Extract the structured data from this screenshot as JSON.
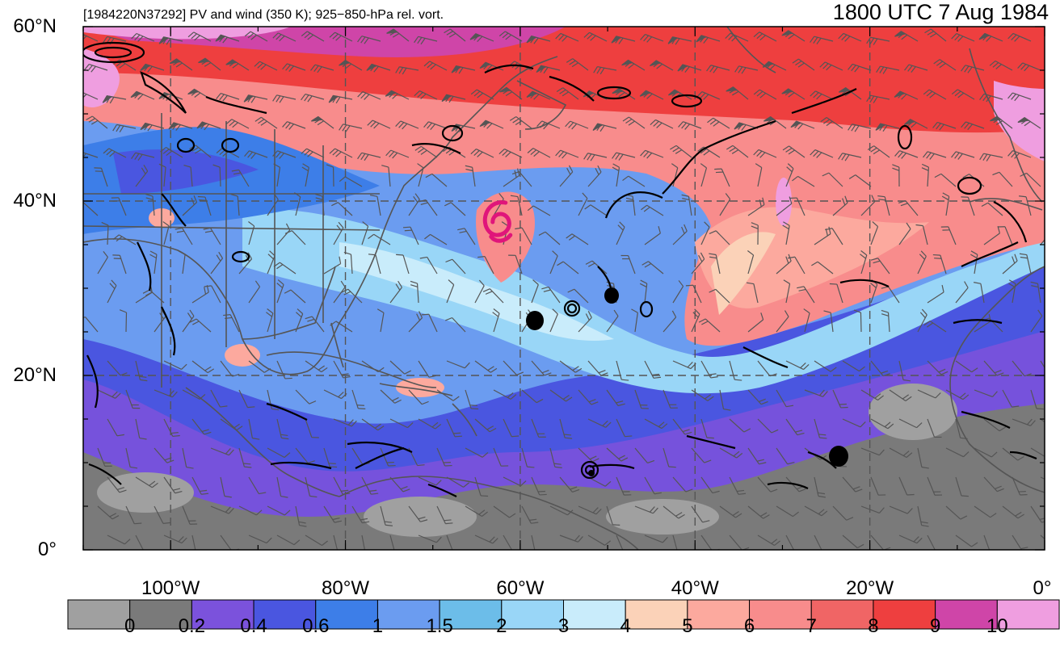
{
  "header": {
    "left_title": "[1984220N37292] PV and wind (350 K); 925−850-hPa rel. vort.",
    "right_title": "1800 UTC 7 Aug 1984"
  },
  "map": {
    "lat_labels": [
      "60°N",
      "40°N",
      "20°N",
      "0°"
    ],
    "lat_values": [
      60,
      40,
      20,
      0
    ],
    "lon_labels": [
      "100°W",
      "80°W",
      "60°W",
      "40°W",
      "20°W",
      "0°"
    ],
    "lon_values": [
      -100,
      -80,
      -60,
      -40,
      -20,
      0
    ],
    "extent": {
      "lon_min": -110,
      "lon_max": 0,
      "lat_min": 0,
      "lat_max": 60
    },
    "storm_center": {
      "lon": -62.6,
      "lat": 37.4
    },
    "colors": {
      "land_outline": "#555555",
      "barbs": "#555555",
      "vorticity": "#000000",
      "storm_marker": "#e0157a",
      "gridline": "#555555"
    }
  },
  "colorbar": {
    "levels": [
      "0",
      "0.2",
      "0.4",
      "0.6",
      "1",
      "1.5",
      "2",
      "3",
      "4",
      "5",
      "6",
      "7",
      "8",
      "9",
      "10"
    ],
    "colors": [
      "#a0a0a0",
      "#7a7a7a",
      "#7b52dc",
      "#4a56e0",
      "#3d7ee8",
      "#6b9cf0",
      "#6cbde9",
      "#99d6f7",
      "#c9ecfb",
      "#fbd2b8",
      "#fca99e",
      "#f88c8c",
      "#f06565",
      "#ee3f3f",
      "#cf45a8",
      "#ef9ee0"
    ]
  }
}
